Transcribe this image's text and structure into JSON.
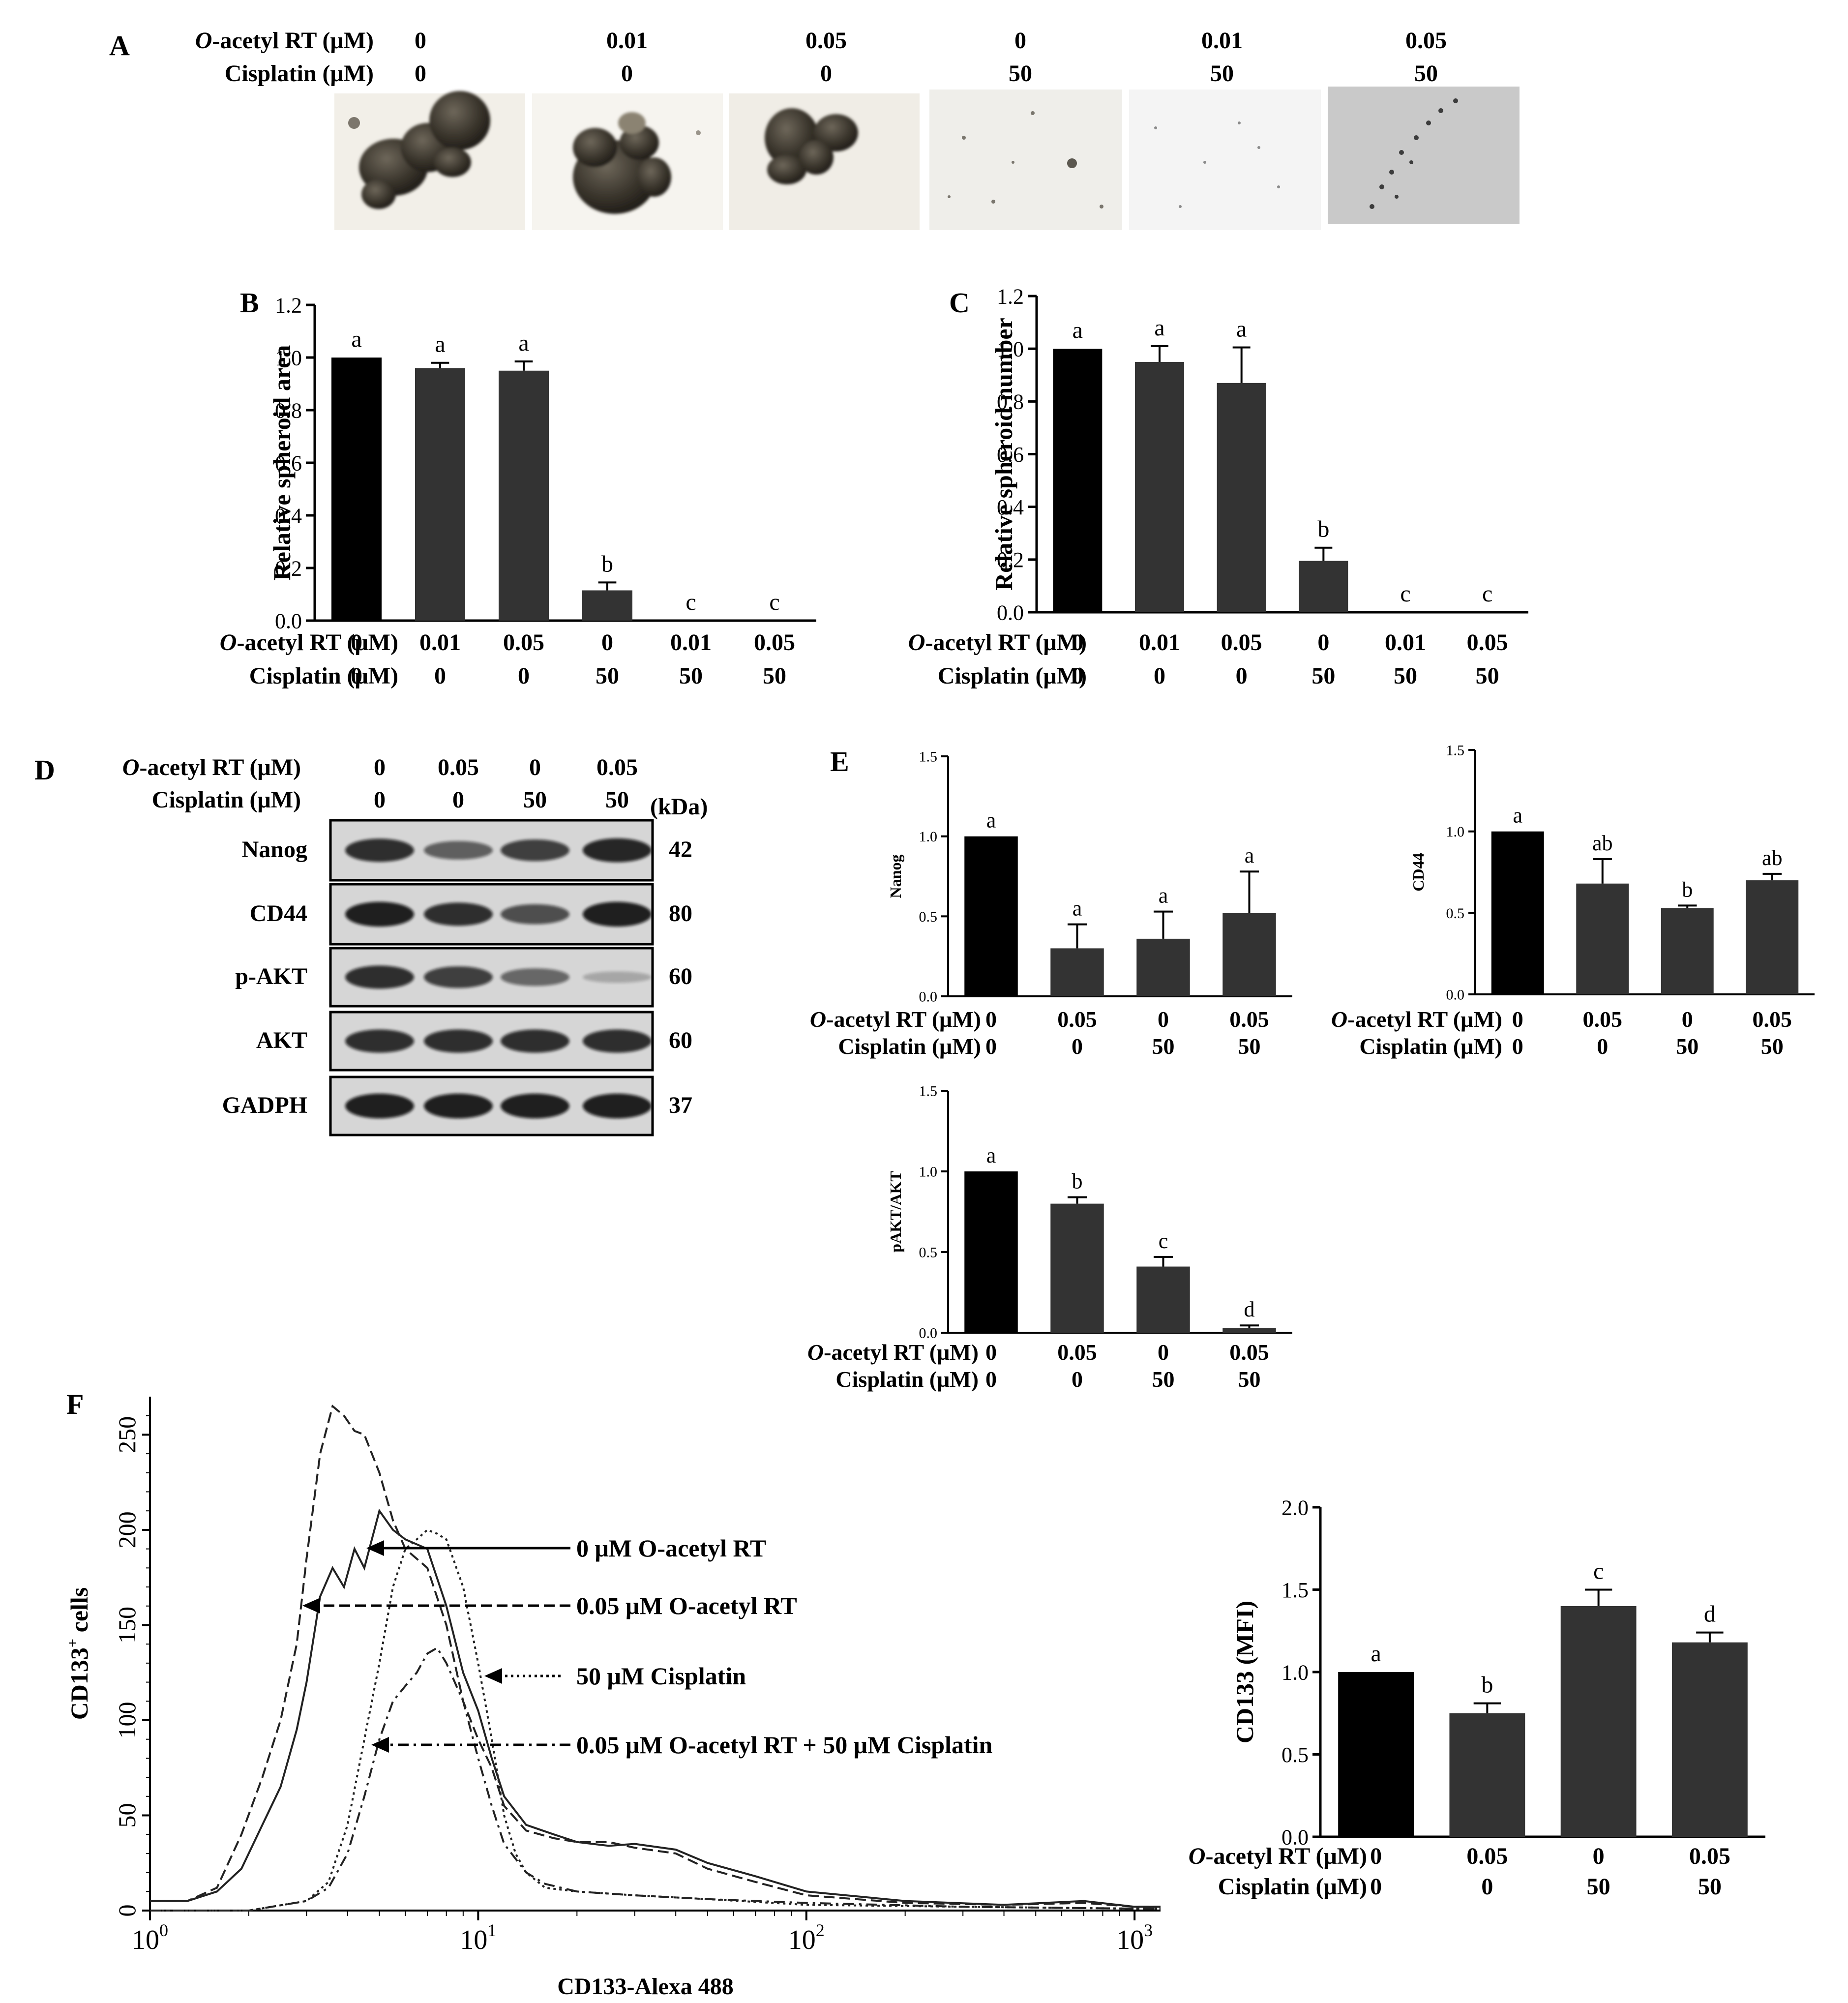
{
  "panel_labels": {
    "A": "A",
    "B": "B",
    "C": "C",
    "D": "D",
    "E": "E",
    "F": "F"
  },
  "treatment_rows": {
    "o_acetyl_prefix": "O",
    "o_acetyl_label": "-acetyl RT (μM)",
    "cisplatin_label": "Cisplatin (μM)"
  },
  "panel_A": {
    "o_acetyl_values": [
      "0",
      "0.01",
      "0.05",
      "0",
      "0.01",
      "0.05"
    ],
    "cisplatin_values": [
      "0",
      "0",
      "0",
      "50",
      "50",
      "50"
    ],
    "images": [
      "spheroid-image",
      "spheroid-image",
      "spheroid-image",
      "spheroid-image",
      "spheroid-image",
      "spheroid-image"
    ]
  },
  "panel_D": {
    "o_acetyl_values": [
      "0",
      "0.05",
      "0",
      "0.05"
    ],
    "cisplatin_values": [
      "0",
      "0",
      "50",
      "50"
    ],
    "kda_header": "(kDa)",
    "blots": [
      {
        "protein": "Nanog",
        "kda": "42",
        "intensity": [
          0.85,
          0.55,
          0.75,
          0.9
        ]
      },
      {
        "protein": "CD44",
        "kda": "80",
        "intensity": [
          0.95,
          0.85,
          0.65,
          0.95
        ]
      },
      {
        "protein": "p-AKT",
        "kda": "60",
        "intensity": [
          0.85,
          0.75,
          0.5,
          0.1
        ]
      },
      {
        "protein": "AKT",
        "kda": "60",
        "intensity": [
          0.85,
          0.85,
          0.85,
          0.85
        ]
      },
      {
        "protein": "GADPH",
        "kda": "37",
        "intensity": [
          0.95,
          0.95,
          0.95,
          0.95
        ]
      }
    ]
  },
  "chart_data": [
    {
      "id": "B",
      "type": "bar",
      "ylabel": "Relative spheroid area",
      "ylim": [
        0,
        1.2
      ],
      "yticks": [
        "0.0",
        "0.2",
        "0.4",
        "0.6",
        "0.8",
        "1.0",
        "1.2"
      ],
      "categories_o_acetyl": [
        "0",
        "0.01",
        "0.05",
        "0",
        "0.01",
        "0.05"
      ],
      "categories_cisplatin": [
        "0",
        "0",
        "0",
        "50",
        "50",
        "50"
      ],
      "values": [
        1.0,
        0.96,
        0.95,
        0.115,
        0.0,
        0.0
      ],
      "errors": [
        0.0,
        0.02,
        0.035,
        0.03,
        0.0,
        0.0
      ],
      "letters": [
        "a",
        "a",
        "a",
        "b",
        "c",
        "c"
      ],
      "colors": [
        "#000000",
        "#333333",
        "#333333",
        "#333333",
        "#333333",
        "#333333"
      ]
    },
    {
      "id": "C",
      "type": "bar",
      "ylabel": "Relative spheroid number",
      "ylim": [
        0,
        1.2
      ],
      "yticks": [
        "0.0",
        "0.2",
        "0.4",
        "0.6",
        "0.8",
        "1.0",
        "1.2"
      ],
      "categories_o_acetyl": [
        "0",
        "0.01",
        "0.05",
        "0",
        "0.01",
        "0.05"
      ],
      "categories_cisplatin": [
        "0",
        "0",
        "0",
        "50",
        "50",
        "50"
      ],
      "values": [
        1.0,
        0.95,
        0.87,
        0.195,
        0.0,
        0.0
      ],
      "errors": [
        0.0,
        0.06,
        0.135,
        0.05,
        0.0,
        0.0
      ],
      "letters": [
        "a",
        "a",
        "a",
        "b",
        "c",
        "c"
      ],
      "colors": [
        "#000000",
        "#333333",
        "#333333",
        "#333333",
        "#333333",
        "#333333"
      ]
    },
    {
      "id": "E-Nanog",
      "type": "bar",
      "ylabel": "Nanog",
      "ylim": [
        0,
        1.5
      ],
      "yticks": [
        "0.0",
        "0.5",
        "1.0",
        "1.5"
      ],
      "categories_o_acetyl": [
        "0",
        "0.05",
        "0",
        "0.05"
      ],
      "categories_cisplatin": [
        "0",
        "0",
        "50",
        "50"
      ],
      "values": [
        1.0,
        0.3,
        0.36,
        0.52
      ],
      "errors": [
        0.0,
        0.15,
        0.17,
        0.26
      ],
      "letters": [
        "a",
        "a",
        "a",
        "a"
      ],
      "colors": [
        "#000000",
        "#333333",
        "#333333",
        "#333333"
      ]
    },
    {
      "id": "E-CD44",
      "type": "bar",
      "ylabel": "CD44",
      "ylim": [
        0,
        1.5
      ],
      "yticks": [
        "0.0",
        "0.5",
        "1.0",
        "1.5"
      ],
      "categories_o_acetyl": [
        "0",
        "0.05",
        "0",
        "0.05"
      ],
      "categories_cisplatin": [
        "0",
        "0",
        "50",
        "50"
      ],
      "values": [
        1.0,
        0.68,
        0.53,
        0.7
      ],
      "errors": [
        0.0,
        0.15,
        0.015,
        0.04
      ],
      "letters": [
        "a",
        "ab",
        "b",
        "ab"
      ],
      "colors": [
        "#000000",
        "#333333",
        "#333333",
        "#333333"
      ]
    },
    {
      "id": "E-pAKT",
      "type": "bar",
      "ylabel": "pAKT/AKT",
      "ylim": [
        0,
        1.5
      ],
      "yticks": [
        "0.0",
        "0.5",
        "1.0",
        "1.5"
      ],
      "categories_o_acetyl": [
        "0",
        "0.05",
        "0",
        "0.05"
      ],
      "categories_cisplatin": [
        "0",
        "0",
        "50",
        "50"
      ],
      "values": [
        1.0,
        0.8,
        0.41,
        0.03
      ],
      "errors": [
        0.0,
        0.04,
        0.06,
        0.015
      ],
      "letters": [
        "a",
        "b",
        "c",
        "d"
      ],
      "colors": [
        "#000000",
        "#333333",
        "#333333",
        "#333333"
      ]
    },
    {
      "id": "F-histogram",
      "type": "line",
      "ylabel": "CD133",
      "ylabel_sup": "+",
      "ylabel_suffix": " cells",
      "xlabel": "CD133-Alexa 488",
      "xscale": "log",
      "xlim": [
        1,
        1200
      ],
      "ylim": [
        0,
        270
      ],
      "xtick_base": "10",
      "xticks": [
        {
          "exp": "0",
          "value": 1
        },
        {
          "exp": "1",
          "value": 10
        },
        {
          "exp": "2",
          "value": 100
        },
        {
          "exp": "3",
          "value": 1000
        }
      ],
      "yticks": [
        "0",
        "50",
        "100",
        "150",
        "200",
        "250"
      ],
      "series": [
        {
          "name": "0 μM O-acetyl RT",
          "style": "solid",
          "x": [
            1,
            1.3,
            1.6,
            1.9,
            2.2,
            2.5,
            2.8,
            3.0,
            3.3,
            3.6,
            3.9,
            4.2,
            4.5,
            5.0,
            5.5,
            6.0,
            7.0,
            8.0,
            9.0,
            10.0,
            11.0,
            12.0,
            14.0,
            17.0,
            20.0,
            25.0,
            30.0,
            40.0,
            50.0,
            70.0,
            100.0,
            200.0,
            400.0,
            700.0,
            1000.0,
            1200.0
          ],
          "y": [
            5,
            5,
            10,
            22,
            45,
            65,
            95,
            120,
            165,
            180,
            170,
            190,
            180,
            210,
            200,
            195,
            190,
            160,
            125,
            105,
            80,
            60,
            45,
            40,
            36,
            34,
            35,
            32,
            25,
            18,
            10,
            5,
            3,
            5,
            2,
            2
          ]
        },
        {
          "name": "0.05 μM O-acetyl RT",
          "style": "dashed",
          "x": [
            1,
            1.3,
            1.6,
            1.9,
            2.2,
            2.5,
            2.8,
            3.0,
            3.3,
            3.6,
            3.9,
            4.2,
            4.5,
            5.0,
            5.5,
            6.0,
            7.0,
            8.0,
            9.0,
            10.0,
            11.0,
            12.0,
            14.0,
            17.0,
            20.0,
            25.0,
            30.0,
            40.0,
            50.0,
            70.0,
            100.0,
            200.0,
            400.0,
            700.0,
            1000.0,
            1200.0
          ],
          "y": [
            5,
            5,
            12,
            40,
            70,
            100,
            140,
            185,
            240,
            265,
            260,
            252,
            250,
            230,
            205,
            190,
            180,
            150,
            110,
            90,
            75,
            55,
            42,
            38,
            36,
            36,
            33,
            30,
            22,
            15,
            8,
            4,
            3,
            4,
            2,
            2
          ]
        },
        {
          "name": "50 μM Cisplatin",
          "style": "dotted",
          "x": [
            1,
            2,
            3,
            3.5,
            4,
            4.5,
            5,
            5.5,
            6,
            6.5,
            7,
            7.5,
            8,
            9,
            10,
            11,
            12,
            13,
            14,
            16,
            20,
            30,
            50,
            100,
            300,
            1000,
            1200
          ],
          "y": [
            0,
            0,
            5,
            15,
            45,
            90,
            130,
            170,
            190,
            195,
            200,
            198,
            195,
            170,
            130,
            90,
            50,
            30,
            20,
            12,
            10,
            8,
            6,
            3,
            2,
            1,
            1
          ]
        },
        {
          "name": "0.05 μM O-acetyl RT + 50 μM Cisplatin",
          "style": "dashdot",
          "x": [
            1,
            2,
            3,
            3.5,
            4,
            4.5,
            5,
            5.5,
            6,
            6.5,
            7,
            7.5,
            8,
            9,
            10,
            11,
            12,
            14,
            16,
            20,
            30,
            50,
            100,
            300,
            1000,
            1200
          ],
          "y": [
            0,
            0,
            5,
            12,
            30,
            60,
            90,
            110,
            118,
            125,
            135,
            138,
            130,
            110,
            80,
            55,
            35,
            20,
            14,
            10,
            8,
            6,
            4,
            2,
            1,
            1
          ]
        }
      ]
    },
    {
      "id": "F-MFI",
      "type": "bar",
      "ylabel": "CD133 (MFI)",
      "ylim": [
        0,
        2.0
      ],
      "yticks": [
        "0.0",
        "0.5",
        "1.0",
        "1.5",
        "2.0"
      ],
      "categories_o_acetyl": [
        "0",
        "0.05",
        "0",
        "0.05"
      ],
      "categories_cisplatin": [
        "0",
        "0",
        "50",
        "50"
      ],
      "values": [
        1.0,
        0.75,
        1.4,
        1.18
      ],
      "errors": [
        0.0,
        0.06,
        0.1,
        0.06
      ],
      "letters": [
        "a",
        "b",
        "c",
        "d"
      ],
      "colors": [
        "#000000",
        "#333333",
        "#333333",
        "#333333"
      ]
    }
  ]
}
